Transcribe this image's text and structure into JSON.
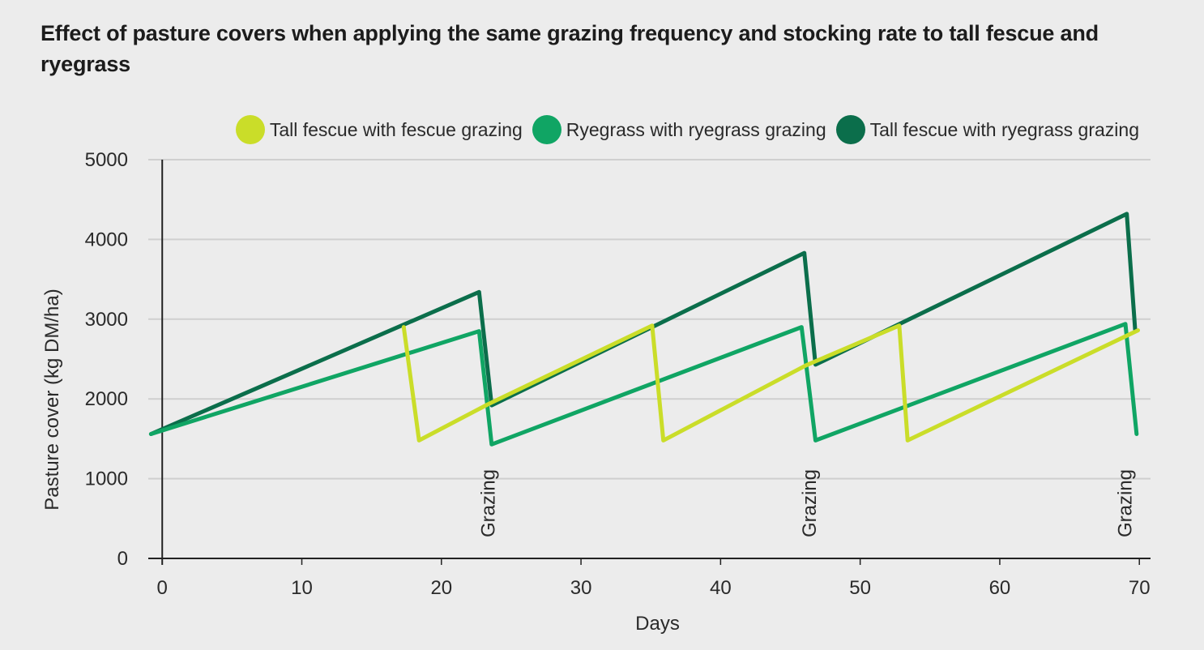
{
  "chart_data": {
    "type": "line",
    "title": "Effect of pasture covers when applying the same grazing frequency and stocking rate to tall fescue and ryegrass",
    "xlabel": "Days",
    "ylabel": "Pasture cover (kg DM/ha)",
    "xlim": [
      -1,
      70.8
    ],
    "ylim": [
      0,
      5000
    ],
    "xticks": [
      0,
      10,
      20,
      30,
      40,
      50,
      60,
      70
    ],
    "yticks": [
      0,
      1000,
      2000,
      3000,
      4000,
      5000
    ],
    "grid": "horizontal",
    "legend_position": "top-right",
    "annotations": [
      {
        "text": "Grazing",
        "x": 23.3
      },
      {
        "text": "Grazing",
        "x": 46.3
      },
      {
        "text": "Grazing",
        "x": 68.9
      }
    ],
    "series": [
      {
        "name": "Tall fescue with ryegrass grazing",
        "color": "#0b6e4b",
        "x": [
          -0.8,
          22.7,
          23.6,
          46.0,
          46.8,
          69.1,
          69.7
        ],
        "y": [
          1560,
          3340,
          1920,
          3830,
          2430,
          4320,
          2870
        ]
      },
      {
        "name": "Ryegrass with ryegrass grazing",
        "color": "#10a564",
        "x": [
          -0.8,
          22.7,
          23.6,
          45.8,
          46.8,
          69.0,
          69.8
        ],
        "y": [
          1560,
          2850,
          1430,
          2900,
          1480,
          2940,
          1560
        ]
      },
      {
        "name": "Tall fescue with fescue grazing",
        "color": "#cadd29",
        "x": [
          17.3,
          18.4,
          23.3,
          35.1,
          35.9,
          46.1,
          52.8,
          53.4,
          69.9
        ],
        "y": [
          2900,
          1480,
          1930,
          2920,
          1480,
          2420,
          2920,
          1480,
          2860
        ]
      }
    ]
  },
  "legend": {
    "items": [
      {
        "label": "Tall fescue with fescue grazing",
        "color": "#cadd29"
      },
      {
        "label": "Ryegrass with ryegrass grazing",
        "color": "#10a564"
      },
      {
        "label": "Tall fescue with ryegrass grazing",
        "color": "#0b6e4b"
      }
    ]
  }
}
